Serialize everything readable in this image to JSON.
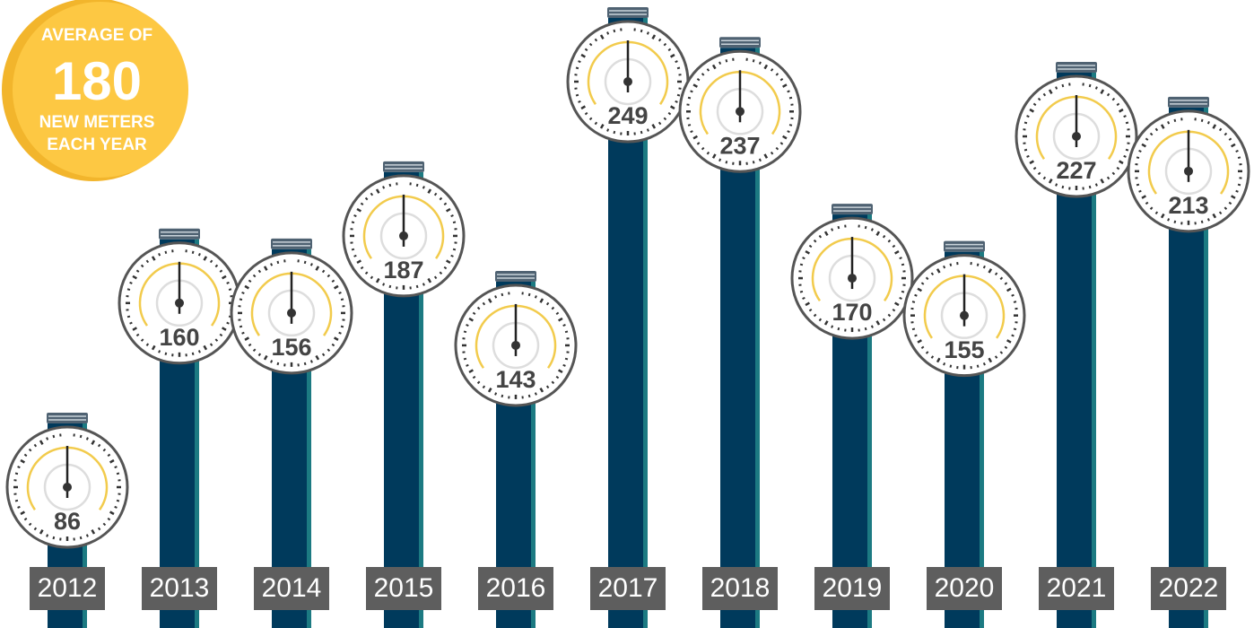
{
  "chart_data": {
    "type": "bar",
    "categories": [
      "2012",
      "2013",
      "2014",
      "2015",
      "2016",
      "2017",
      "2018",
      "2019",
      "2020",
      "2021",
      "2022"
    ],
    "values": [
      86,
      160,
      156,
      187,
      143,
      249,
      237,
      170,
      155,
      227,
      213
    ],
    "color": "#003a5c"
  },
  "badge": {
    "top": "AVERAGE OF",
    "value": 180,
    "line2": "NEW METERS",
    "line3": "EACH YEAR"
  }
}
